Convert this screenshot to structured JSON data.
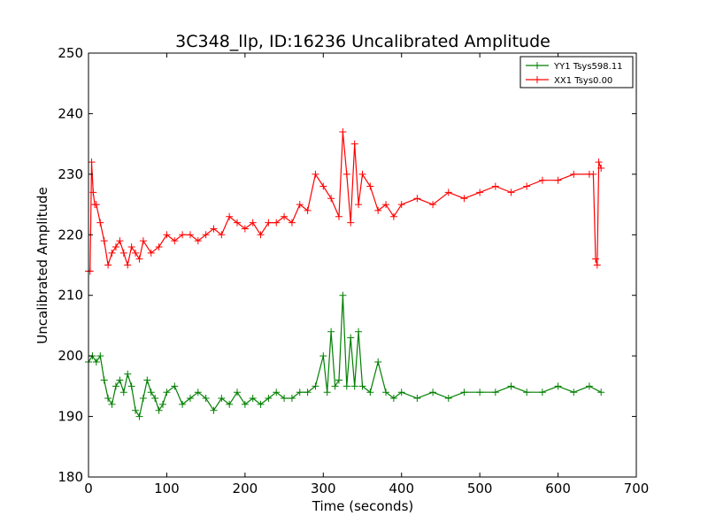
{
  "chart_data": {
    "type": "line",
    "title": "3C348_llp, ID:16236 Uncalibrated Amplitude",
    "xlabel": "Time (seconds)",
    "ylabel": "Uncalibrated Amplitude",
    "xlim": [
      0,
      700
    ],
    "ylim": [
      180,
      250
    ],
    "xticks": [
      0,
      100,
      200,
      300,
      400,
      500,
      600,
      700
    ],
    "yticks": [
      180,
      190,
      200,
      210,
      220,
      230,
      240,
      250
    ],
    "grid": false,
    "legend_position": "top-right",
    "marker": "+",
    "series": [
      {
        "name": "YY1 Tsys598.11",
        "color": "#008000",
        "x": [
          0,
          5,
          10,
          15,
          20,
          25,
          30,
          35,
          40,
          45,
          50,
          55,
          60,
          65,
          70,
          75,
          80,
          85,
          90,
          95,
          100,
          110,
          120,
          130,
          140,
          150,
          160,
          170,
          180,
          190,
          200,
          210,
          220,
          230,
          240,
          250,
          260,
          270,
          280,
          290,
          300,
          305,
          310,
          315,
          320,
          325,
          330,
          335,
          340,
          345,
          350,
          360,
          370,
          380,
          390,
          400,
          420,
          440,
          460,
          480,
          500,
          520,
          540,
          560,
          580,
          600,
          620,
          640,
          655
        ],
        "y": [
          199,
          200,
          199,
          200,
          196,
          193,
          192,
          195,
          196,
          194,
          197,
          195,
          191,
          190,
          193,
          196,
          194,
          193,
          191,
          192,
          194,
          195,
          192,
          193,
          194,
          193,
          191,
          193,
          192,
          194,
          192,
          193,
          192,
          193,
          194,
          193,
          193,
          194,
          194,
          195,
          200,
          194,
          204,
          195,
          196,
          210,
          195,
          203,
          195,
          204,
          195,
          194,
          199,
          194,
          193,
          194,
          193,
          194,
          193,
          194,
          194,
          194,
          195,
          194,
          194,
          195,
          194,
          195,
          194
        ]
      },
      {
        "name": "XX1 Tsys0.00",
        "color": "#ff0000",
        "x": [
          0,
          2,
          4,
          6,
          8,
          10,
          15,
          20,
          25,
          30,
          35,
          40,
          45,
          50,
          55,
          60,
          65,
          70,
          80,
          90,
          100,
          110,
          120,
          130,
          140,
          150,
          160,
          170,
          180,
          190,
          200,
          210,
          220,
          230,
          240,
          250,
          260,
          270,
          280,
          290,
          300,
          310,
          320,
          325,
          330,
          335,
          340,
          345,
          350,
          360,
          370,
          380,
          390,
          400,
          420,
          440,
          460,
          480,
          500,
          520,
          540,
          560,
          580,
          600,
          620,
          640,
          645,
          648,
          650,
          652,
          655
        ],
        "y": [
          214,
          214,
          232,
          227,
          225,
          225,
          222,
          219,
          215,
          217,
          218,
          219,
          217,
          215,
          218,
          217,
          216,
          219,
          217,
          218,
          220,
          219,
          220,
          220,
          219,
          220,
          221,
          220,
          223,
          222,
          221,
          222,
          220,
          222,
          222,
          223,
          222,
          225,
          224,
          230,
          228,
          226,
          223,
          237,
          230,
          222,
          235,
          225,
          230,
          228,
          224,
          225,
          223,
          225,
          226,
          225,
          227,
          226,
          227,
          228,
          227,
          228,
          229,
          229,
          230,
          230,
          230,
          216,
          215,
          232,
          231
        ]
      }
    ]
  }
}
